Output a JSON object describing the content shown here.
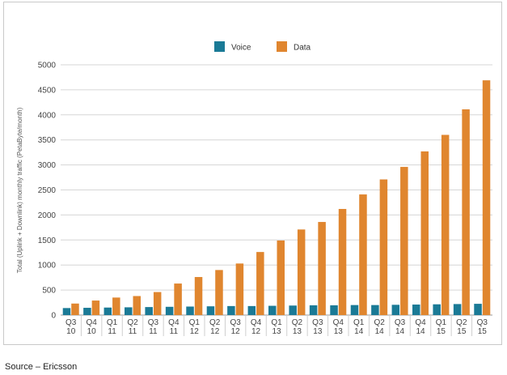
{
  "chart_data": {
    "type": "bar",
    "title": "",
    "xlabel": "",
    "ylabel": "Total (Uplink + Downlink) monthly traffic (PetaByte/month)",
    "ylim": [
      0,
      5000
    ],
    "yticks": [
      0,
      500,
      1000,
      1500,
      2000,
      2500,
      3000,
      3500,
      4000,
      4500,
      5000
    ],
    "grid": true,
    "legend_position": "top-center",
    "categories": [
      [
        "Q3",
        "10"
      ],
      [
        "Q4",
        "10"
      ],
      [
        "Q1",
        "11"
      ],
      [
        "Q2",
        "11"
      ],
      [
        "Q3",
        "11"
      ],
      [
        "Q4",
        "11"
      ],
      [
        "Q1",
        "12"
      ],
      [
        "Q2",
        "12"
      ],
      [
        "Q3",
        "12"
      ],
      [
        "Q4",
        "12"
      ],
      [
        "Q1",
        "13"
      ],
      [
        "Q2",
        "13"
      ],
      [
        "Q3",
        "13"
      ],
      [
        "Q4",
        "13"
      ],
      [
        "Q1",
        "14"
      ],
      [
        "Q2",
        "14"
      ],
      [
        "Q3",
        "14"
      ],
      [
        "Q4",
        "14"
      ],
      [
        "Q1",
        "15"
      ],
      [
        "Q2",
        "15"
      ],
      [
        "Q3",
        "15"
      ]
    ],
    "series": [
      {
        "name": "Voice",
        "color": "#1a7a96",
        "values": [
          140,
          145,
          150,
          155,
          160,
          165,
          170,
          175,
          180,
          180,
          185,
          190,
          195,
          195,
          200,
          200,
          205,
          210,
          215,
          220,
          225
        ]
      },
      {
        "name": "Data",
        "color": "#e0862f",
        "values": [
          230,
          290,
          350,
          380,
          460,
          630,
          760,
          900,
          1030,
          1260,
          1490,
          1710,
          1860,
          2120,
          2410,
          2710,
          2960,
          3270,
          3600,
          4110,
          4690
        ]
      }
    ]
  },
  "footer": {
    "source": "Source – Ericsson"
  }
}
